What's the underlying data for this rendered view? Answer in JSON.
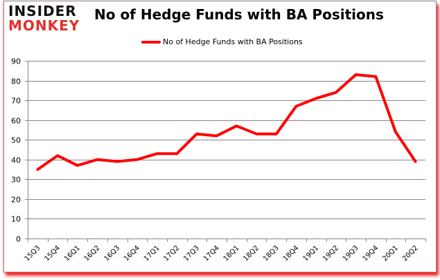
{
  "logo": {
    "line1": "INSIDER",
    "line2": "MONKEY"
  },
  "chart_title": "No of Hedge Funds with BA Positions",
  "legend": {
    "label": "No of Hedge Funds with BA Positions",
    "color": "#ff0000"
  },
  "chart_data": {
    "type": "line",
    "title": "No of Hedge Funds with BA Positions",
    "xlabel": "",
    "ylabel": "",
    "ylim": [
      0,
      90
    ],
    "yticks": [
      0,
      10,
      20,
      30,
      40,
      50,
      60,
      70,
      80,
      90
    ],
    "grid": true,
    "legend_position": "top",
    "categories": [
      "15Q3",
      "15Q4",
      "16Q1",
      "16Q2",
      "16Q3",
      "16Q4",
      "17Q1",
      "17Q2",
      "17Q3",
      "17Q4",
      "18Q1",
      "18Q2",
      "18Q3",
      "18Q4",
      "19Q1",
      "19Q2",
      "19Q3",
      "19Q4",
      "20Q1",
      "20Q2"
    ],
    "series": [
      {
        "name": "No of Hedge Funds with BA Positions",
        "color": "#ff0000",
        "values": [
          35,
          42,
          37,
          40,
          39,
          40,
          43,
          43,
          53,
          52,
          57,
          53,
          53,
          67,
          71,
          74,
          83,
          82,
          54,
          39
        ]
      }
    ]
  }
}
